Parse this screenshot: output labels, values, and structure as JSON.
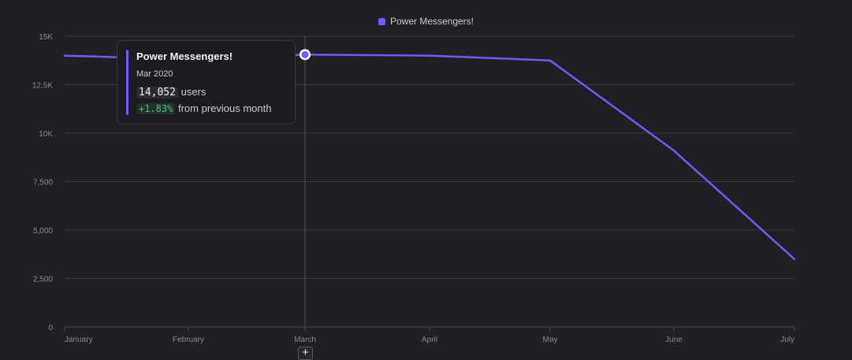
{
  "chart_data": {
    "type": "line",
    "categories": [
      "January",
      "February",
      "March",
      "April",
      "May",
      "June",
      "July"
    ],
    "series": [
      {
        "name": "Power Messengers!",
        "values": [
          14000,
          13800,
          14052,
          14000,
          13750,
          9100,
          3500
        ]
      }
    ],
    "y_ticks": [
      "0",
      "2,500",
      "5,000",
      "7,500",
      "10K",
      "12.5K",
      "15K"
    ],
    "ylim": [
      0,
      15000
    ],
    "grid": true,
    "legend_position": "top-center",
    "colors": {
      "series": "#7856ff",
      "positive": "#4fbe7a"
    },
    "highlight_index": 2
  },
  "legend": {
    "label": "Power Messengers!"
  },
  "tooltip": {
    "title": "Power Messengers!",
    "date": "Mar 2020",
    "value": "14,052",
    "value_suffix": "users",
    "change": "+1.83%",
    "change_suffix": "from previous month"
  },
  "controls": {
    "add_label": "+",
    "add_icon": "plus-icon"
  }
}
